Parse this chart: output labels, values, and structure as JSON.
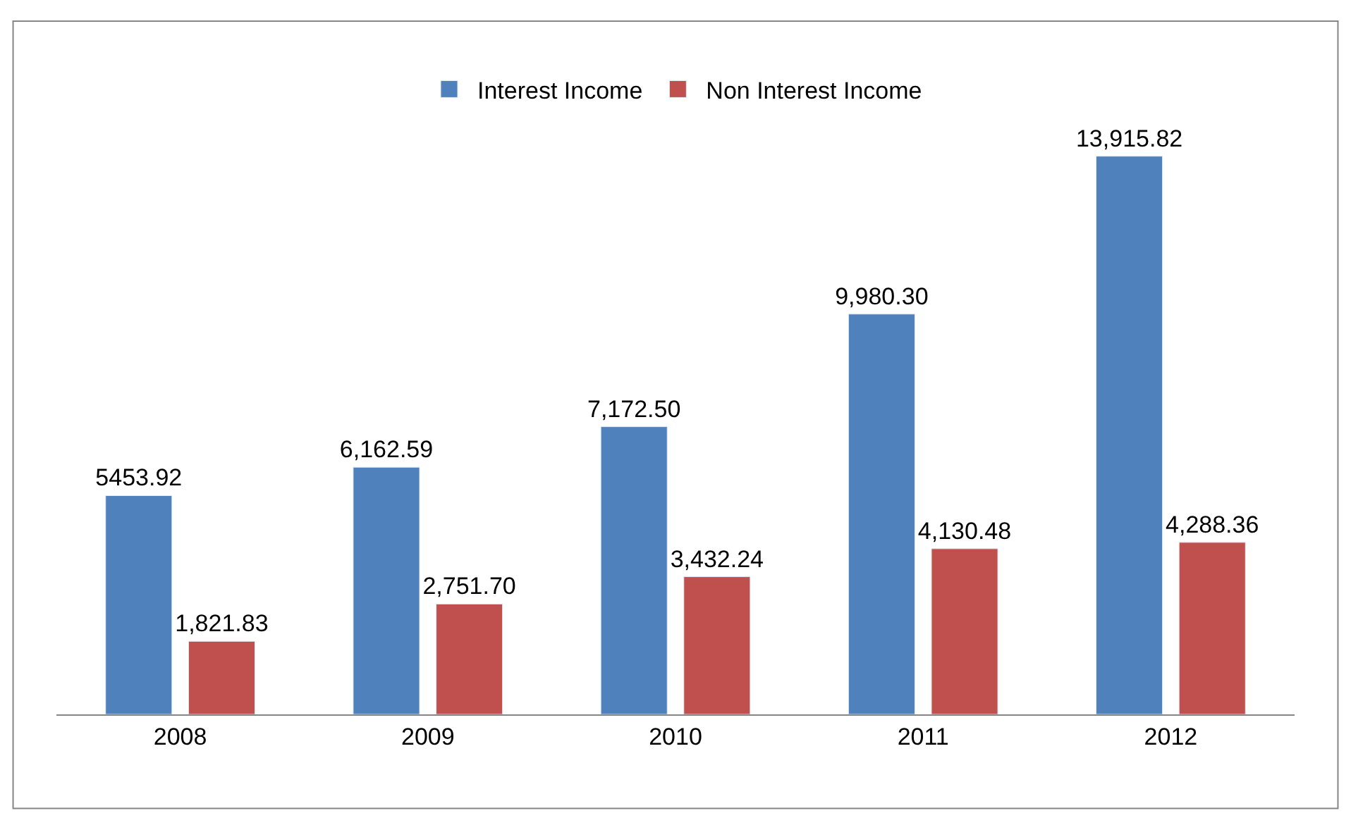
{
  "chart_data": {
    "type": "bar",
    "categories": [
      "2008",
      "2009",
      "2010",
      "2011",
      "2012"
    ],
    "series": [
      {
        "name": "Interest Income",
        "color": "#4f81bd",
        "values": [
          5453.92,
          6162.59,
          7172.5,
          9980.3,
          13915.82
        ],
        "value_labels": [
          "5453.92",
          "6,162.59",
          "7,172.50",
          "9,980.30",
          "13,915.82"
        ]
      },
      {
        "name": "Non Interest Income",
        "color": "#c0504d",
        "values": [
          1821.83,
          2751.7,
          3432.24,
          4130.48,
          4288.36
        ],
        "value_labels": [
          "1,821.83",
          "2,751.70",
          "3,432.24",
          "4,130.48",
          "4,288.36"
        ]
      }
    ],
    "legend": "top"
  }
}
